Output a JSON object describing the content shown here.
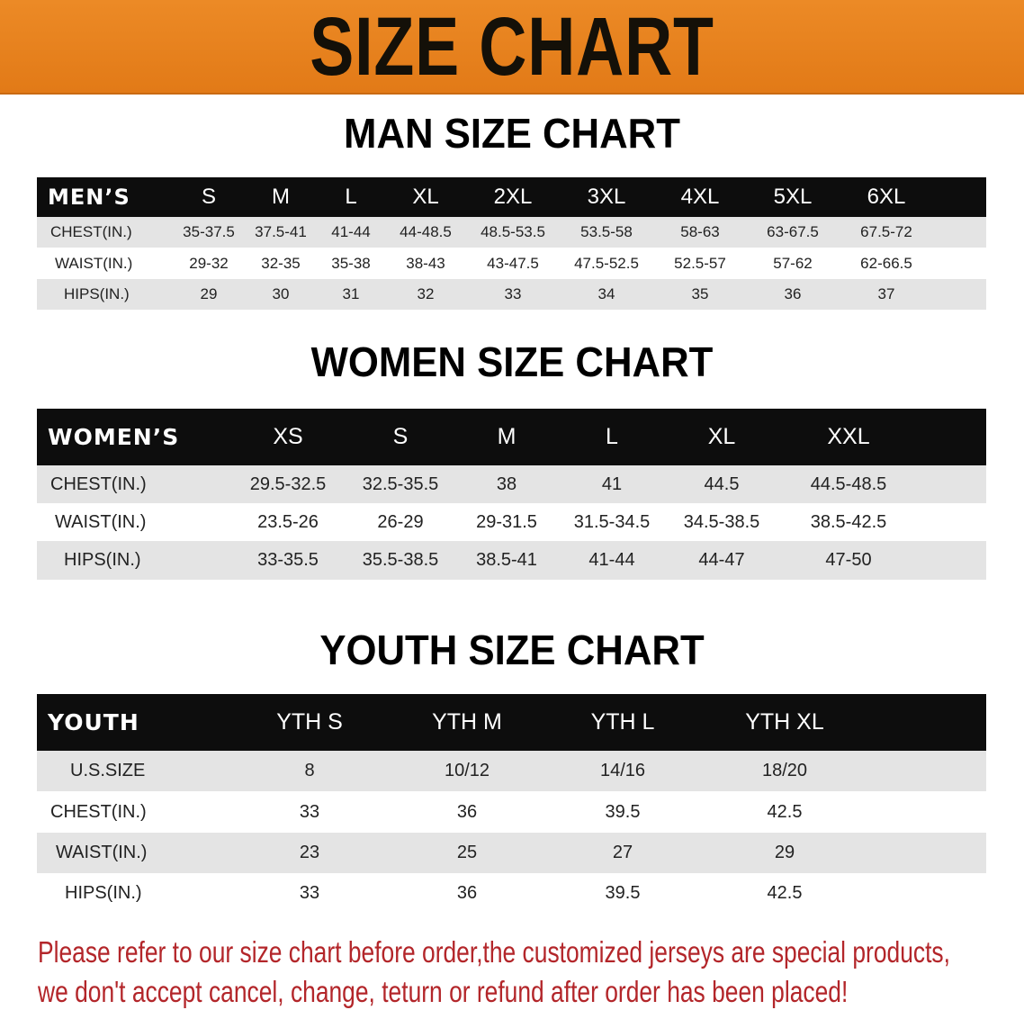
{
  "banner": {
    "title": "SIZE CHART"
  },
  "men": {
    "title": "MAN SIZE CHART",
    "header": [
      "MEN’S",
      "S",
      "M",
      "L",
      "XL",
      "2XL",
      "3XL",
      "4XL",
      "5XL",
      "6XL"
    ],
    "rows": [
      [
        "CHEST(IN.)",
        "35-37.5",
        "37.5-41",
        "41-44",
        "44-48.5",
        "48.5-53.5",
        "53.5-58",
        "58-63",
        "63-67.5",
        "67.5-72"
      ],
      [
        "WAIST(IN.)",
        "29-32",
        "32-35",
        "35-38",
        "38-43",
        "43-47.5",
        "47.5-52.5",
        "52.5-57",
        "57-62",
        "62-66.5"
      ],
      [
        "HIPS(IN.)",
        "29",
        "30",
        "31",
        "32",
        "33",
        "34",
        "35",
        "36",
        "37"
      ]
    ]
  },
  "women": {
    "title": "WOMEN SIZE CHART",
    "header": [
      "WOMEN’S",
      "XS",
      "S",
      "M",
      "L",
      "XL",
      "XXL"
    ],
    "rows": [
      [
        "CHEST(IN.)",
        "29.5-32.5",
        "32.5-35.5",
        "38",
        "41",
        "44.5",
        "44.5-48.5"
      ],
      [
        "WAIST(IN.)",
        "23.5-26",
        "26-29",
        "29-31.5",
        "31.5-34.5",
        "34.5-38.5",
        "38.5-42.5"
      ],
      [
        "HIPS(IN.)",
        "33-35.5",
        "35.5-38.5",
        "38.5-41",
        "41-44",
        "44-47",
        "47-50"
      ]
    ]
  },
  "youth": {
    "title": "YOUTH SIZE CHART",
    "header": [
      "YOUTH",
      "YTH S",
      "YTH M",
      "YTH L",
      "YTH XL"
    ],
    "rows": [
      [
        "U.S.SIZE",
        "8",
        "10/12",
        "14/16",
        "18/20"
      ],
      [
        "CHEST(IN.)",
        "33",
        "36",
        "39.5",
        "42.5"
      ],
      [
        "WAIST(IN.)",
        "23",
        "25",
        "27",
        "29"
      ],
      [
        "HIPS(IN.)",
        "33",
        "36",
        "39.5",
        "42.5"
      ]
    ]
  },
  "notice": {
    "line1": "Please refer to our size chart before order,the customized jerseys are special products,",
    "line2": "we don't accept cancel, change, teturn or refund after order has been placed!"
  },
  "colors": {
    "banner": "#e8801e",
    "header_row": "#0d0d0d",
    "stripe": "#e4e4e4",
    "notice": "#b3262a"
  }
}
